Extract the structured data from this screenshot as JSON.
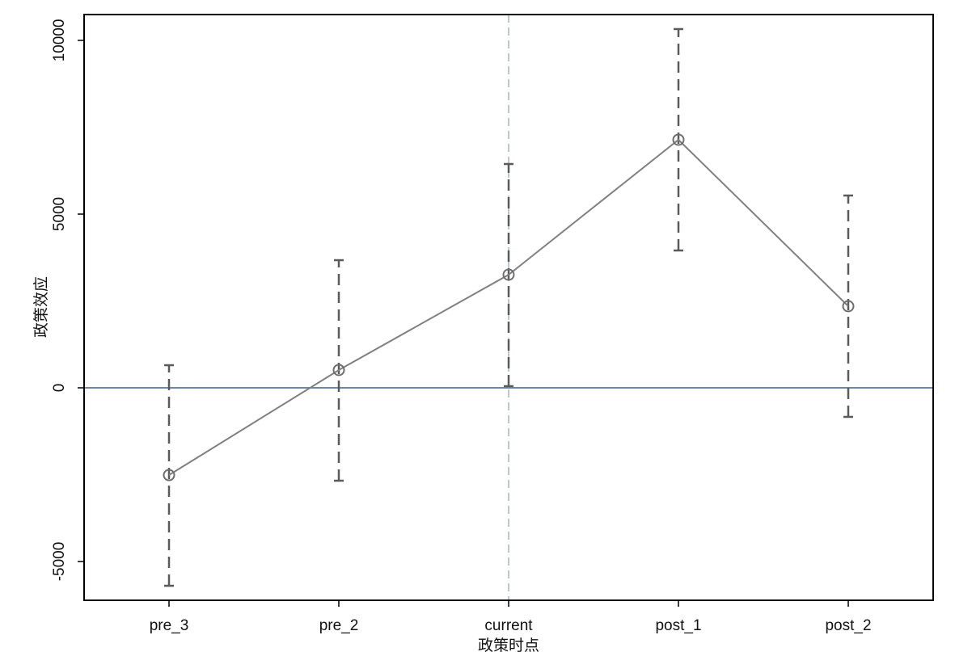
{
  "chart_data": {
    "type": "errorbar-line",
    "x_label": "政策时点",
    "y_label": "政策效应",
    "categories": [
      "pre_3",
      "pre_2",
      "current",
      "post_1",
      "post_2"
    ],
    "values": [
      -2512,
      512,
      3256,
      7140,
      2349
    ],
    "ci_lower": [
      -5698,
      -2674,
      47,
      3953,
      -837
    ],
    "ci_upper": [
      651,
      3674,
      6442,
      10326,
      5535
    ],
    "color": "#808080",
    "errorbar_color": "#5a5a5a",
    "ylim": [
      -6116,
      10744
    ],
    "yticks": [
      -5000,
      0,
      5000,
      10000
    ],
    "hline": 0,
    "hline_color": "#6a88a6",
    "vline_index": 2,
    "vline_color": "#9fb5bf"
  }
}
